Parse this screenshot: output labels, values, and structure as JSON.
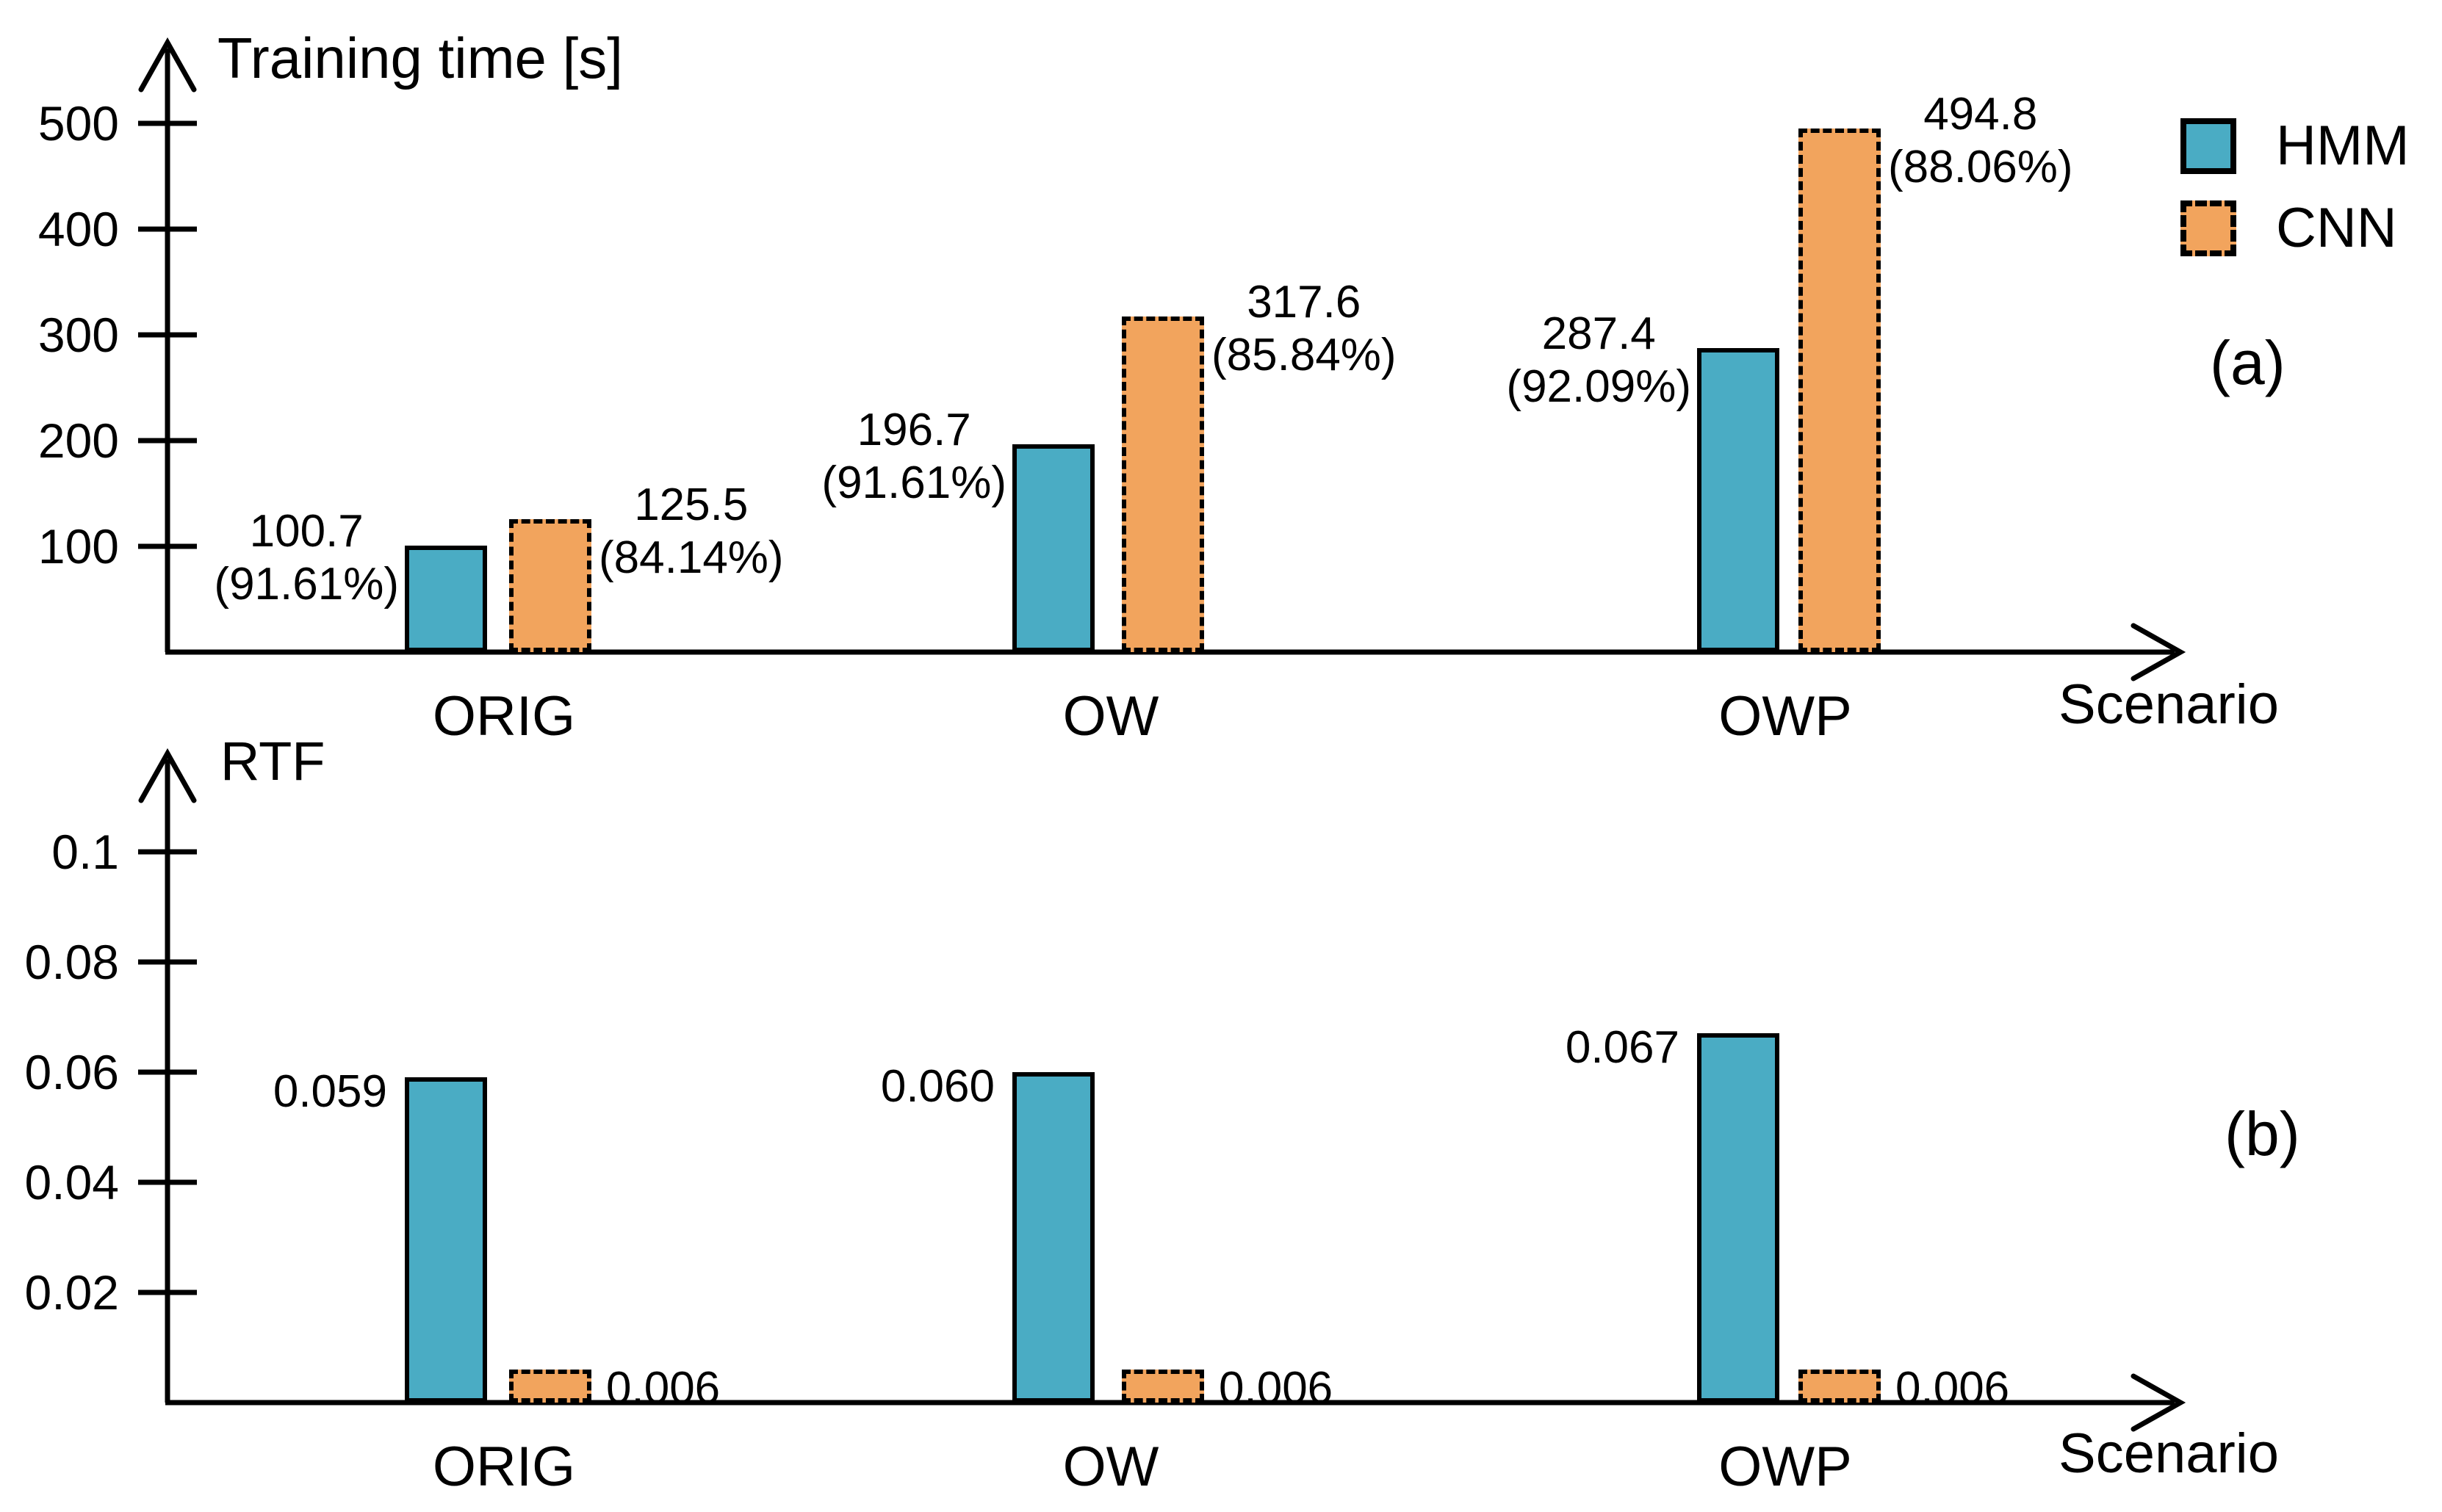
{
  "figure": {
    "background": "#ffffff",
    "panel_labels": [
      "(a)",
      "(b)"
    ],
    "legend": [
      {
        "label": "HMM",
        "swatch_style": "solid",
        "color": "#4AACC4"
      },
      {
        "label": "CNN",
        "swatch_style": "dashed",
        "color": "#F2A45D"
      }
    ],
    "colors": {
      "hmm_fill": "#4AACC4",
      "cnn_fill": "#F2A45D",
      "axis": "#000000",
      "text": "#000000"
    }
  },
  "chart_data": [
    {
      "panel": "a",
      "type": "bar",
      "title": "Training time [s]",
      "xlabel": "Scenario",
      "ylabel": "Training time [s]",
      "categories": [
        "ORIG",
        "OW",
        "OWP"
      ],
      "yticks": [
        100,
        200,
        300,
        400,
        500
      ],
      "ytick_labels": [
        "100",
        "200",
        "300",
        "400",
        "500"
      ],
      "ylim": [
        0,
        575
      ],
      "grid": false,
      "legend_position": "top-right",
      "series": [
        {
          "name": "HMM",
          "values": [
            100.7,
            196.7,
            287.4
          ],
          "value_labels": [
            [
              "100.7",
              "(91.61%)"
            ],
            [
              "196.7",
              "(91.61%)"
            ],
            [
              "287.4",
              "(92.09%)"
            ]
          ]
        },
        {
          "name": "CNN",
          "values": [
            125.5,
            317.6,
            494.8
          ],
          "value_labels": [
            [
              "125.5",
              "(84.14%)"
            ],
            [
              "317.6",
              "(85.84%)"
            ],
            [
              "494.8",
              "(88.06%)"
            ]
          ]
        }
      ]
    },
    {
      "panel": "b",
      "type": "bar",
      "title": "RTF",
      "xlabel": "Scenario",
      "ylabel": "RTF",
      "categories": [
        "ORIG",
        "OW",
        "OWP"
      ],
      "yticks": [
        0.02,
        0.04,
        0.06,
        0.08,
        0.1
      ],
      "ytick_labels": [
        "0.02",
        "0.04",
        "0.06",
        "0.08",
        "0.1"
      ],
      "ylim": [
        0,
        0.118
      ],
      "grid": false,
      "legend_position": "none",
      "series": [
        {
          "name": "HMM",
          "values": [
            0.059,
            0.06,
            0.067
          ],
          "value_labels": [
            [
              "0.059"
            ],
            [
              "0.060"
            ],
            [
              "0.067"
            ]
          ]
        },
        {
          "name": "CNN",
          "values": [
            0.006,
            0.006,
            0.006
          ],
          "value_labels": [
            [
              "0.006"
            ],
            [
              "0.006"
            ],
            [
              "0.006"
            ]
          ]
        }
      ]
    }
  ]
}
